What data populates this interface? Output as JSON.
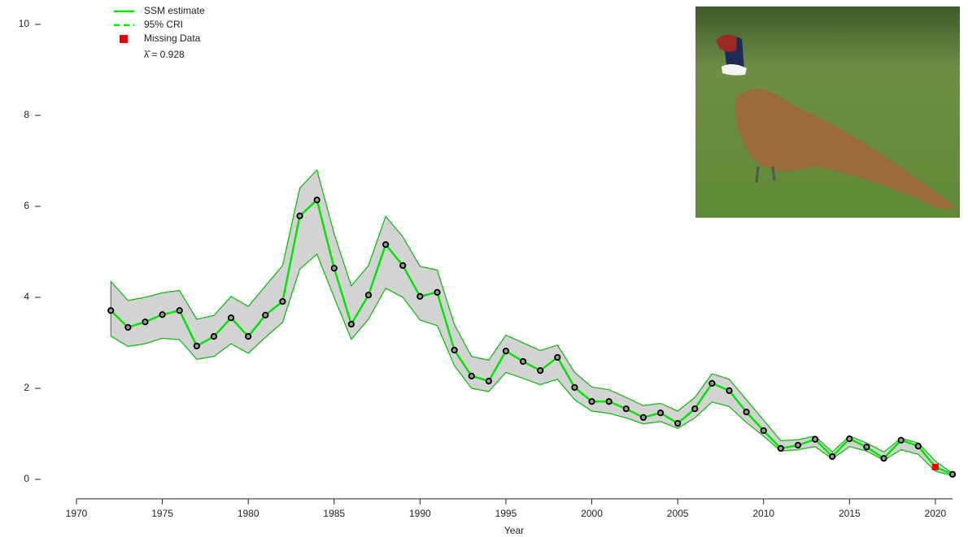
{
  "chart_data": {
    "type": "line",
    "x_label": "Year",
    "x": [
      1972,
      1973,
      1974,
      1975,
      1976,
      1977,
      1978,
      1979,
      1980,
      1981,
      1982,
      1983,
      1984,
      1985,
      1986,
      1987,
      1988,
      1989,
      1990,
      1991,
      1992,
      1993,
      1994,
      1995,
      1996,
      1997,
      1998,
      1999,
      2000,
      2001,
      2002,
      2003,
      2004,
      2005,
      2006,
      2007,
      2008,
      2009,
      2010,
      2011,
      2012,
      2013,
      2014,
      2015,
      2016,
      2017,
      2018,
      2019,
      2020,
      2021
    ],
    "series": [
      {
        "name": "SSM estimate",
        "color": "#00e600",
        "values": [
          3.71,
          3.34,
          3.46,
          3.62,
          3.71,
          2.93,
          3.14,
          3.55,
          3.14,
          3.61,
          3.91,
          5.79,
          6.14,
          4.64,
          3.41,
          4.05,
          5.16,
          4.7,
          4.02,
          4.11,
          2.84,
          2.27,
          2.16,
          2.82,
          2.59,
          2.39,
          2.68,
          2.02,
          1.71,
          1.71,
          1.55,
          1.36,
          1.46,
          1.23,
          1.55,
          2.11,
          1.95,
          1.48,
          1.07,
          0.68,
          0.75,
          0.88,
          0.5,
          0.89,
          0.71,
          0.46,
          0.86,
          0.73,
          0.27,
          0.11
        ]
      }
    ],
    "cri": {
      "name": "95% CRI",
      "color": "#00e600",
      "fill": "#d3d3d3",
      "upper": [
        4.35,
        3.93,
        4.0,
        4.1,
        4.15,
        3.52,
        3.6,
        4.02,
        3.8,
        4.25,
        4.7,
        6.4,
        6.8,
        5.4,
        4.25,
        4.7,
        5.78,
        5.33,
        4.68,
        4.6,
        3.4,
        2.7,
        2.62,
        3.17,
        3.0,
        2.83,
        2.95,
        2.35,
        2.03,
        1.97,
        1.8,
        1.62,
        1.67,
        1.5,
        1.8,
        2.32,
        2.2,
        1.75,
        1.3,
        0.85,
        0.87,
        0.95,
        0.6,
        0.95,
        0.8,
        0.6,
        0.9,
        0.8,
        0.4,
        0.13
      ],
      "lower": [
        3.15,
        2.92,
        2.98,
        3.1,
        3.07,
        2.64,
        2.7,
        2.98,
        2.77,
        3.12,
        3.45,
        4.62,
        4.95,
        4.0,
        3.08,
        3.52,
        4.2,
        4.0,
        3.5,
        3.38,
        2.5,
        2.0,
        1.93,
        2.35,
        2.22,
        2.08,
        2.2,
        1.75,
        1.5,
        1.45,
        1.35,
        1.22,
        1.27,
        1.12,
        1.35,
        1.7,
        1.6,
        1.25,
        0.95,
        0.62,
        0.65,
        0.72,
        0.45,
        0.72,
        0.62,
        0.42,
        0.65,
        0.55,
        0.18,
        0.08
      ]
    },
    "observed": {
      "color": "#000000",
      "values": [
        3.71,
        3.34,
        3.46,
        3.62,
        3.71,
        2.93,
        3.14,
        3.55,
        3.14,
        3.61,
        3.91,
        5.79,
        6.14,
        4.64,
        3.41,
        4.05,
        5.16,
        4.7,
        4.02,
        4.11,
        2.84,
        2.27,
        2.16,
        2.82,
        2.59,
        2.39,
        2.68,
        2.02,
        1.71,
        1.71,
        1.55,
        1.36,
        1.46,
        1.23,
        1.55,
        2.11,
        1.95,
        1.48,
        1.07,
        0.68,
        0.75,
        0.88,
        0.5,
        0.89,
        0.71,
        0.46,
        0.86,
        0.73,
        null,
        0.11
      ]
    },
    "missing": {
      "name": "Missing Data",
      "color": "#ee0000",
      "x": [
        2020
      ],
      "values": [
        0.27
      ]
    },
    "annotation": "λ̂ = 0.928",
    "xlim": [
      1970,
      2021
    ],
    "xticks": [
      1970,
      1975,
      1980,
      1985,
      1990,
      1995,
      2000,
      2005,
      2010,
      2015,
      2020
    ],
    "ylim": [
      0,
      10
    ],
    "yticks": [
      0,
      2,
      4,
      6,
      8,
      10
    ]
  }
}
